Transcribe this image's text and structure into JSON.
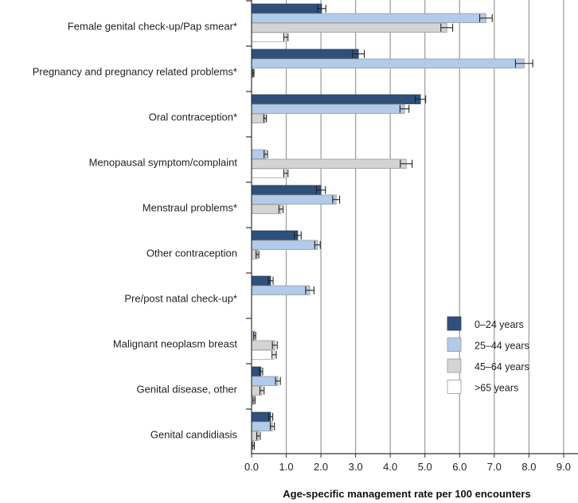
{
  "chart_data": {
    "type": "bar",
    "orientation": "horizontal",
    "title": "",
    "xlabel": "Age-specific management rate per 100 encounters",
    "ylabel": "",
    "xlim": [
      0,
      9
    ],
    "xticks": [
      "0.0",
      "1.0",
      "2.0",
      "3.0",
      "4.0",
      "5.0",
      "6.0",
      "7.0",
      "8.0",
      "9.0"
    ],
    "grid": "vertical",
    "legend_position": "bottom-right",
    "error_bars": true,
    "categories": [
      "Female genital check-up/Pap smear*",
      "Pregnancy and pregnancy related problems*",
      "Oral contraception*",
      "Menopausal symptom/complaint",
      "Menstraul problems*",
      "Other contraception",
      "Pre/post natal check-up*",
      "Malignant neoplasm breast",
      "Genital disease, other",
      "Genital candidiasis"
    ],
    "series": [
      {
        "name": "0–24 years",
        "color": "#2f5079",
        "values": [
          2.02,
          3.08,
          4.87,
          null,
          2.0,
          1.33,
          0.55,
          null,
          0.27,
          0.55
        ],
        "errors": [
          0.12,
          0.17,
          0.15,
          null,
          0.13,
          0.1,
          0.07,
          null,
          0.05,
          0.06
        ]
      },
      {
        "name": "25–44 years",
        "color": "#b1cbe8",
        "values": [
          6.76,
          7.86,
          4.41,
          0.41,
          2.44,
          1.9,
          1.68,
          0.09,
          0.76,
          0.6
        ],
        "errors": [
          0.18,
          0.25,
          0.13,
          0.05,
          0.1,
          0.08,
          0.12,
          0.03,
          0.07,
          0.06
        ]
      },
      {
        "name": "45–64 years",
        "color": "#d4d4d4",
        "values": [
          5.63,
          0.05,
          0.39,
          4.46,
          0.85,
          0.17,
          null,
          0.67,
          0.3,
          0.2
        ],
        "errors": [
          0.17,
          0.02,
          0.04,
          0.17,
          0.06,
          0.04,
          null,
          0.07,
          0.06,
          0.05
        ]
      },
      {
        "name": ">65 years",
        "color": "#ffffff",
        "values": [
          0.99,
          null,
          null,
          0.99,
          null,
          null,
          null,
          0.65,
          0.07,
          0.05
        ],
        "errors": [
          0.06,
          null,
          null,
          0.06,
          null,
          null,
          null,
          0.06,
          0.03,
          0.03
        ]
      }
    ]
  }
}
